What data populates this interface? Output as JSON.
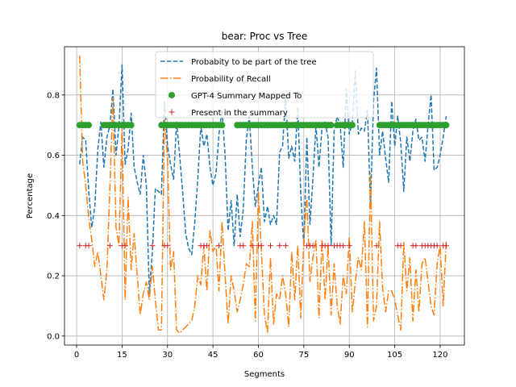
{
  "chart_data": {
    "type": "line",
    "title": "bear: Proc vs Tree",
    "xlabel": "Segments",
    "ylabel": "Percentage",
    "xlim": [
      -4,
      128
    ],
    "ylim": [
      -0.03,
      0.96
    ],
    "xticks": [
      0,
      15,
      30,
      45,
      60,
      75,
      90,
      105,
      120
    ],
    "yticks": [
      0.0,
      0.2,
      0.4,
      0.6,
      0.8
    ],
    "ytick_labels": [
      "0.0",
      "0.2",
      "0.4",
      "0.6",
      "0.8"
    ],
    "grid": true,
    "legend_position": "top-center",
    "colors": {
      "tree": "#1f77b4",
      "recall": "#ff7f0e",
      "summary": "#2ca02c",
      "present": "#d62728"
    },
    "series": [
      {
        "name": "Probabity to be part of the tree",
        "style": "dashed",
        "color": "#1f77b4",
        "x": [
          1,
          2,
          3,
          4,
          5,
          6,
          7,
          8,
          9,
          10,
          11,
          12,
          13,
          14,
          15,
          16,
          17,
          18,
          19,
          20,
          21,
          22,
          23,
          24,
          25,
          26,
          27,
          28,
          29,
          30,
          31,
          32,
          33,
          34,
          35,
          36,
          37,
          38,
          39,
          40,
          41,
          42,
          43,
          44,
          45,
          46,
          47,
          48,
          49,
          50,
          51,
          52,
          53,
          54,
          55,
          56,
          57,
          58,
          59,
          60,
          61,
          62,
          63,
          64,
          65,
          66,
          67,
          68,
          69,
          70,
          71,
          72,
          73,
          74,
          75,
          76,
          77,
          78,
          79,
          80,
          81,
          82,
          83,
          84,
          85,
          86,
          87,
          88,
          89,
          90,
          91,
          92,
          93,
          94,
          95,
          96,
          97,
          98,
          99,
          100,
          101,
          102,
          103,
          104,
          105,
          106,
          107,
          108,
          109,
          110,
          111,
          112,
          113,
          114,
          115,
          116,
          117,
          118,
          119,
          120,
          121,
          122
        ],
        "values": [
          0.57,
          0.66,
          0.65,
          0.48,
          0.36,
          0.43,
          0.62,
          0.71,
          0.56,
          0.66,
          0.7,
          0.82,
          0.6,
          0.7,
          0.9,
          0.57,
          0.62,
          0.74,
          0.56,
          0.51,
          0.47,
          0.6,
          0.5,
          0.14,
          0.28,
          0.49,
          0.48,
          0.47,
          0.78,
          0.63,
          0.57,
          0.52,
          0.71,
          0.6,
          0.48,
          0.34,
          0.29,
          0.27,
          0.38,
          0.52,
          0.7,
          0.63,
          0.67,
          0.56,
          0.5,
          0.54,
          0.67,
          0.75,
          0.6,
          0.35,
          0.45,
          0.3,
          0.47,
          0.33,
          0.42,
          0.65,
          0.73,
          0.56,
          0.43,
          0.5,
          0.56,
          0.38,
          0.43,
          0.37,
          0.4,
          0.37,
          0.61,
          0.63,
          0.8,
          0.59,
          0.63,
          0.58,
          0.76,
          0.47,
          0.3,
          0.66,
          0.37,
          0.52,
          0.7,
          0.56,
          0.69,
          0.71,
          0.66,
          0.3,
          0.68,
          0.73,
          0.7,
          0.56,
          0.82,
          0.67,
          0.71,
          0.88,
          0.67,
          0.69,
          0.68,
          0.75,
          0.43,
          0.78,
          0.89,
          0.6,
          0.68,
          0.59,
          0.51,
          0.78,
          0.63,
          0.73,
          0.64,
          0.48,
          0.66,
          0.58,
          0.68,
          0.72,
          0.65,
          0.66,
          0.58,
          0.7,
          0.8,
          0.55,
          0.56,
          0.6,
          0.66,
          0.73
        ]
      },
      {
        "name": "Probability of Recall",
        "style": "dashdot",
        "color": "#ff7f0e",
        "x": [
          1,
          2,
          3,
          4,
          5,
          6,
          7,
          8,
          9,
          10,
          11,
          12,
          13,
          14,
          15,
          16,
          17,
          18,
          19,
          20,
          21,
          22,
          23,
          24,
          25,
          26,
          27,
          28,
          29,
          30,
          31,
          32,
          33,
          34,
          35,
          36,
          37,
          38,
          39,
          40,
          41,
          42,
          43,
          44,
          45,
          46,
          47,
          48,
          49,
          50,
          51,
          52,
          53,
          54,
          55,
          56,
          57,
          58,
          59,
          60,
          61,
          62,
          63,
          64,
          65,
          66,
          67,
          68,
          69,
          70,
          71,
          72,
          73,
          74,
          75,
          76,
          77,
          78,
          79,
          80,
          81,
          82,
          83,
          84,
          85,
          86,
          87,
          88,
          89,
          90,
          91,
          92,
          93,
          94,
          95,
          96,
          97,
          98,
          99,
          100,
          101,
          102,
          103,
          104,
          105,
          106,
          107,
          108,
          109,
          110,
          111,
          112,
          113,
          114,
          115,
          116,
          117,
          118,
          119,
          120,
          121,
          122
        ],
        "values": [
          0.93,
          0.58,
          0.5,
          0.39,
          0.32,
          0.23,
          0.28,
          0.2,
          0.12,
          0.22,
          0.5,
          0.79,
          0.36,
          0.3,
          0.7,
          0.12,
          0.46,
          0.22,
          0.34,
          0.2,
          0.07,
          0.14,
          0.18,
          0.12,
          0.23,
          0.12,
          0.02,
          0.02,
          0.72,
          0.59,
          0.22,
          0.28,
          0.02,
          0.01,
          0.02,
          0.03,
          0.04,
          0.05,
          0.1,
          0.2,
          0.17,
          0.3,
          0.15,
          0.35,
          0.28,
          0.3,
          0.15,
          0.38,
          0.2,
          0.04,
          0.2,
          0.15,
          0.08,
          0.12,
          0.17,
          0.24,
          0.23,
          0.38,
          0.05,
          0.48,
          0.28,
          0.07,
          0.01,
          0.26,
          0.04,
          0.14,
          0.12,
          0.2,
          0.14,
          0.03,
          0.28,
          0.12,
          0.3,
          0.06,
          0.32,
          0.46,
          0.18,
          0.26,
          0.32,
          0.06,
          0.32,
          0.12,
          0.3,
          0.07,
          0.24,
          0.1,
          0.04,
          0.2,
          0.14,
          0.33,
          0.08,
          0.18,
          0.26,
          0.22,
          0.38,
          0.03,
          0.54,
          0.05,
          0.1,
          0.38,
          0.16,
          0.08,
          0.15,
          0.15,
          0.12,
          0.07,
          0.02,
          0.31,
          0.15,
          0.26,
          0.05,
          0.22,
          0.08,
          0.24,
          0.26,
          0.18,
          0.1,
          0.07,
          0.24,
          0.3,
          0.1,
          0.32
        ]
      },
      {
        "name": "GPT-4 Summary Mapped To",
        "style": "marker-circle",
        "color": "#2ca02c",
        "y_constant": 0.7,
        "x": [
          1,
          2,
          3,
          4,
          9,
          10,
          11,
          12,
          13,
          14,
          15,
          16,
          17,
          18,
          28,
          29,
          30,
          31,
          32,
          33,
          34,
          35,
          36,
          37,
          38,
          39,
          40,
          41,
          42,
          43,
          44,
          45,
          46,
          47,
          48,
          53,
          54,
          55,
          56,
          57,
          58,
          59,
          60,
          61,
          62,
          63,
          64,
          65,
          66,
          67,
          68,
          69,
          70,
          71,
          72,
          73,
          74,
          75,
          76,
          77,
          78,
          79,
          80,
          81,
          82,
          83,
          84,
          86,
          87,
          88,
          89,
          90,
          91,
          100,
          101,
          102,
          103,
          104,
          105,
          106,
          107,
          108,
          109,
          110,
          111,
          112,
          113,
          114,
          115,
          116,
          117,
          118,
          119,
          120,
          121,
          122
        ]
      },
      {
        "name": "Present in the summary",
        "style": "marker-plus",
        "color": "#d62728",
        "y_constant": 0.3,
        "x": [
          1,
          3,
          4,
          11,
          15,
          16,
          25,
          29,
          30,
          41,
          42,
          43,
          47,
          54,
          55,
          58,
          60,
          61,
          64,
          67,
          69,
          76,
          77,
          78,
          81,
          82,
          83,
          85,
          86,
          87,
          88,
          90,
          99,
          106,
          107,
          111,
          112,
          114,
          115,
          116,
          117,
          118,
          119,
          121,
          122
        ]
      }
    ]
  }
}
